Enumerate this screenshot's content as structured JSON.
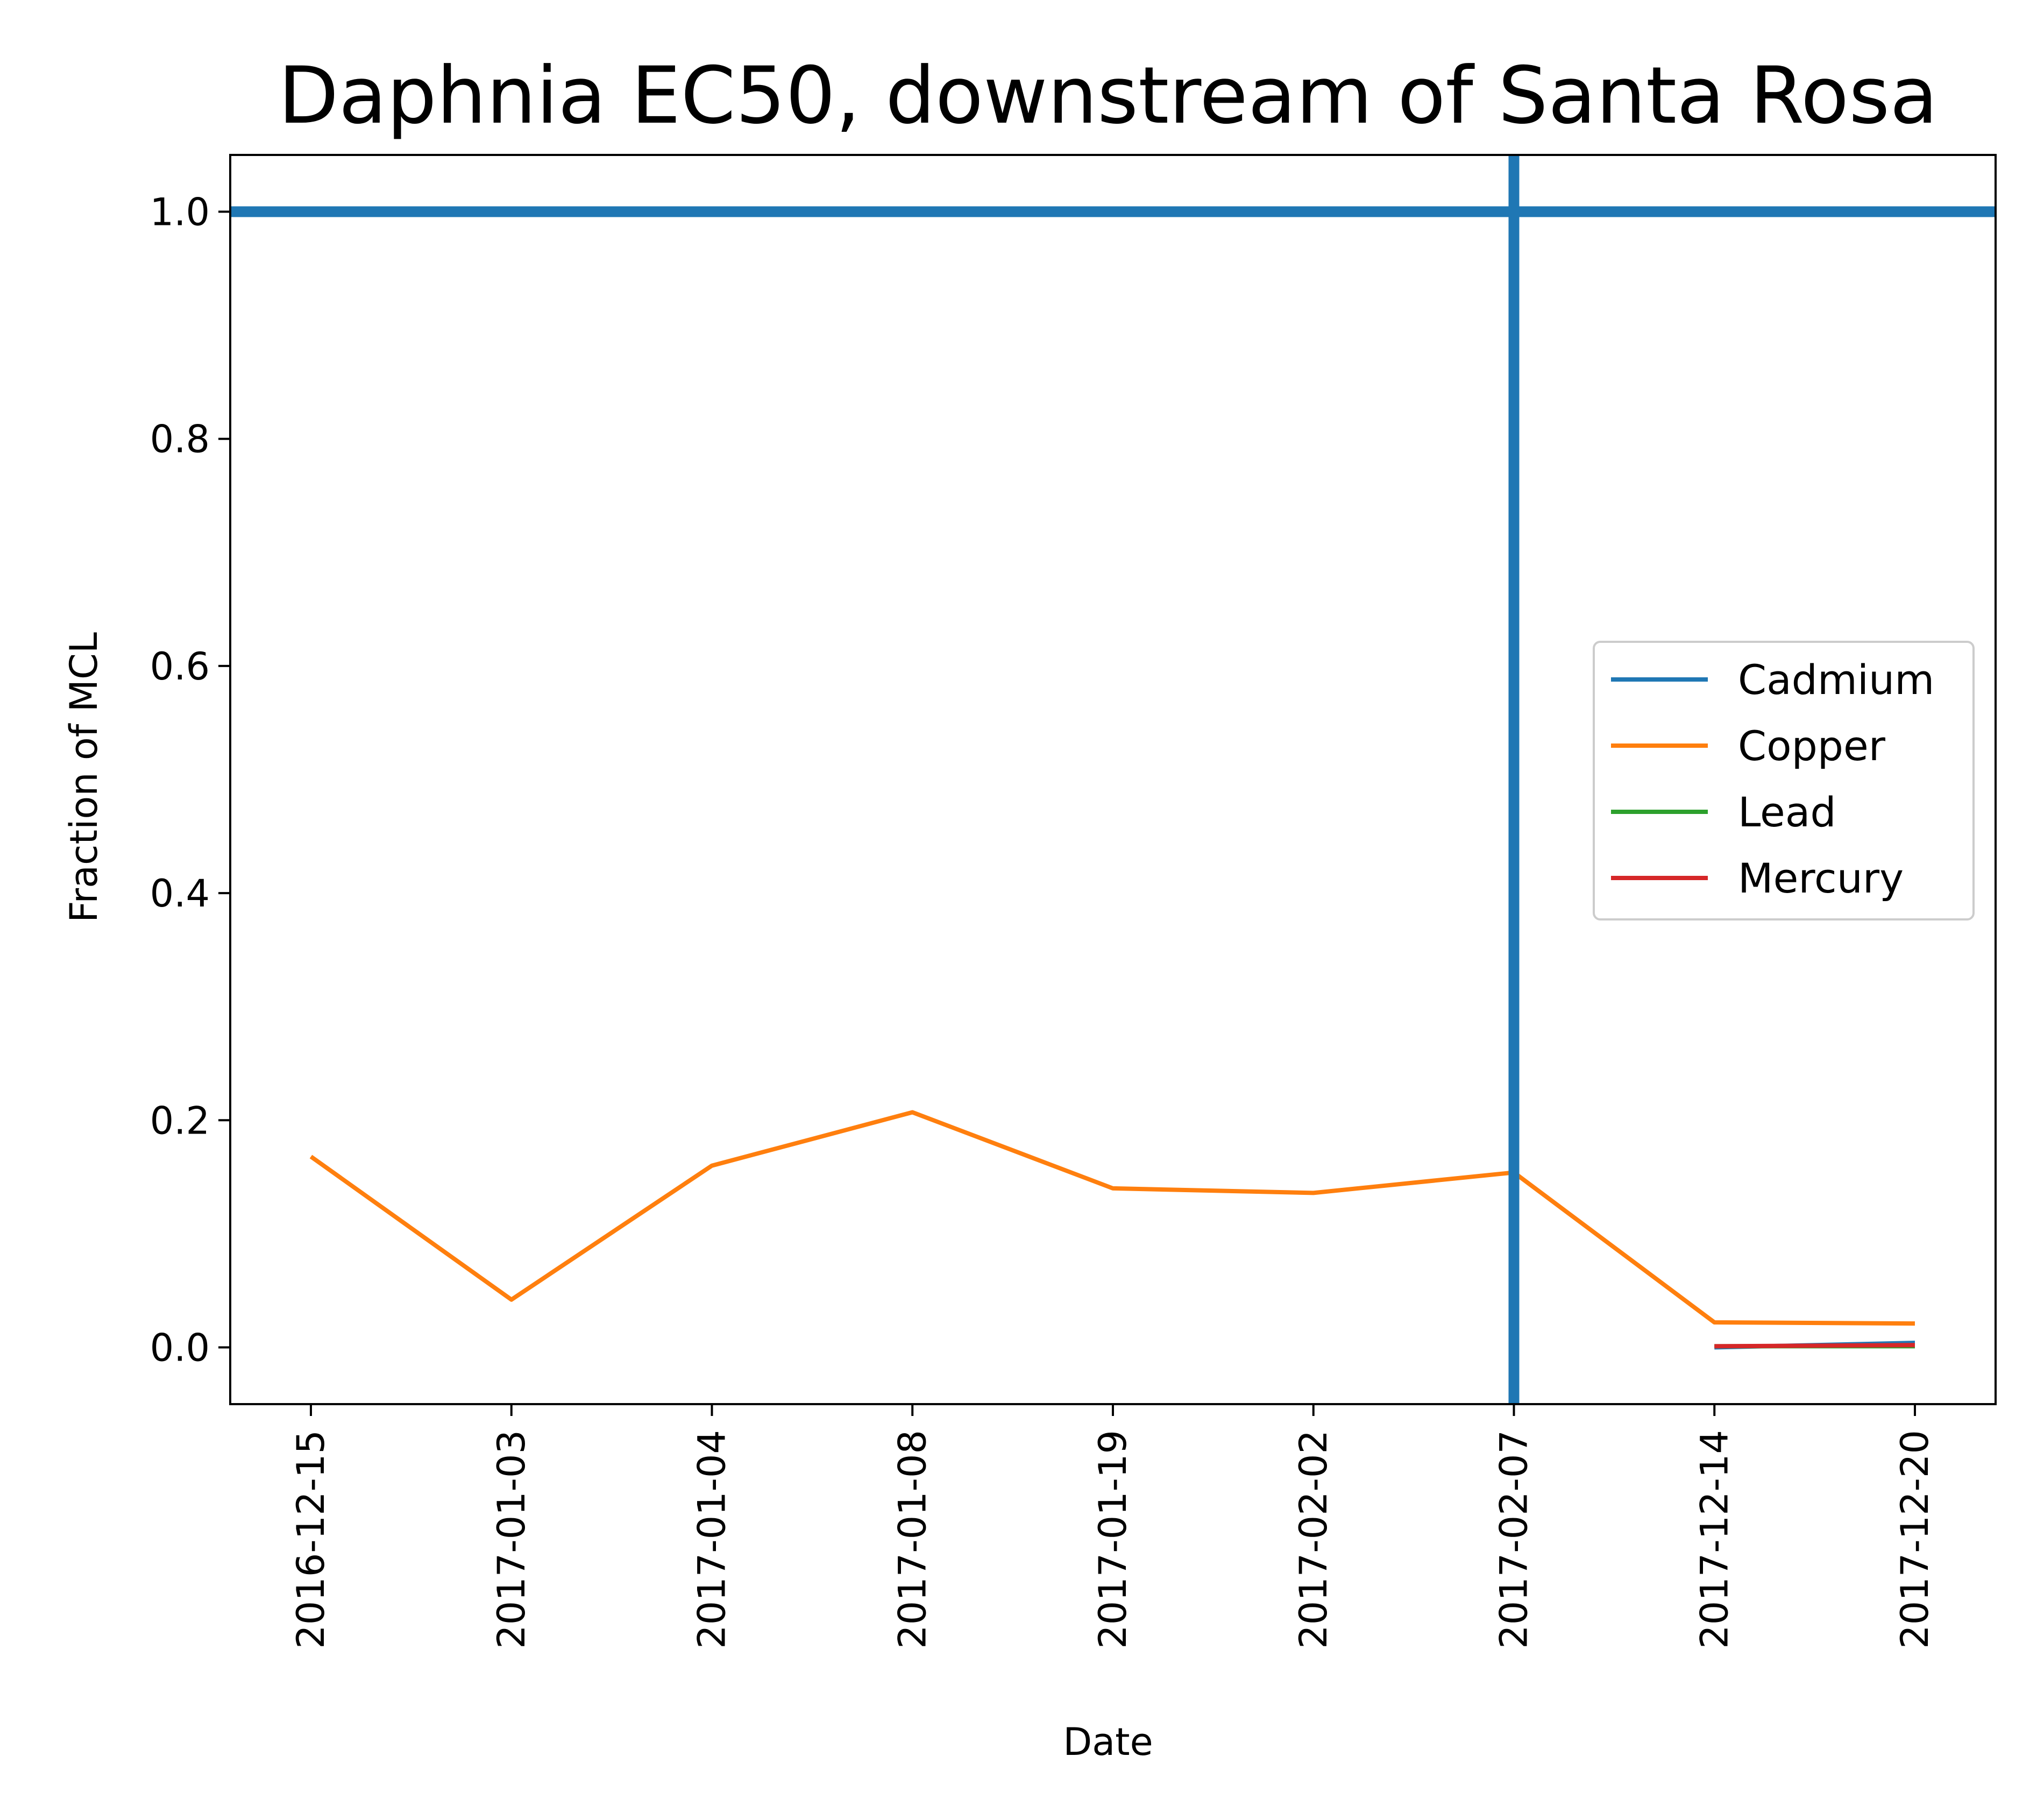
{
  "chart_data": {
    "type": "line",
    "title": "Daphnia EC50, downstream of Santa Rosa",
    "xlabel": "Date",
    "ylabel": "Fraction of MCL",
    "categories": [
      "2016-12-15",
      "2017-01-03",
      "2017-01-04",
      "2017-01-08",
      "2017-01-19",
      "2017-02-02",
      "2017-02-07",
      "2017-12-14",
      "2017-12-20"
    ],
    "ylim": [
      -0.05,
      1.05
    ],
    "yticks": [
      "0.0",
      "0.2",
      "0.4",
      "0.6",
      "0.8",
      "1.0"
    ],
    "grid": false,
    "legend_position": "center-right",
    "series": [
      {
        "name": "Cadmium",
        "color": "#1f77b4",
        "values": [
          null,
          null,
          null,
          null,
          null,
          null,
          null,
          0.0,
          0.004
        ]
      },
      {
        "name": "Copper",
        "color": "#ff7f0e",
        "values": [
          0.168,
          0.042,
          0.16,
          0.207,
          0.14,
          0.136,
          0.154,
          0.022,
          0.021
        ]
      },
      {
        "name": "Lead",
        "color": "#2ca02c",
        "values": [
          null,
          null,
          null,
          null,
          null,
          null,
          null,
          0.001,
          0.001
        ]
      },
      {
        "name": "Mercury",
        "color": "#d62728",
        "values": [
          null,
          null,
          null,
          null,
          null,
          null,
          null,
          0.001,
          0.002
        ]
      }
    ],
    "reference_lines": [
      {
        "orientation": "horizontal",
        "value": 1.0,
        "color": "#1f77b4"
      },
      {
        "orientation": "vertical",
        "category": "2017-02-07",
        "color": "#1f77b4"
      }
    ]
  }
}
